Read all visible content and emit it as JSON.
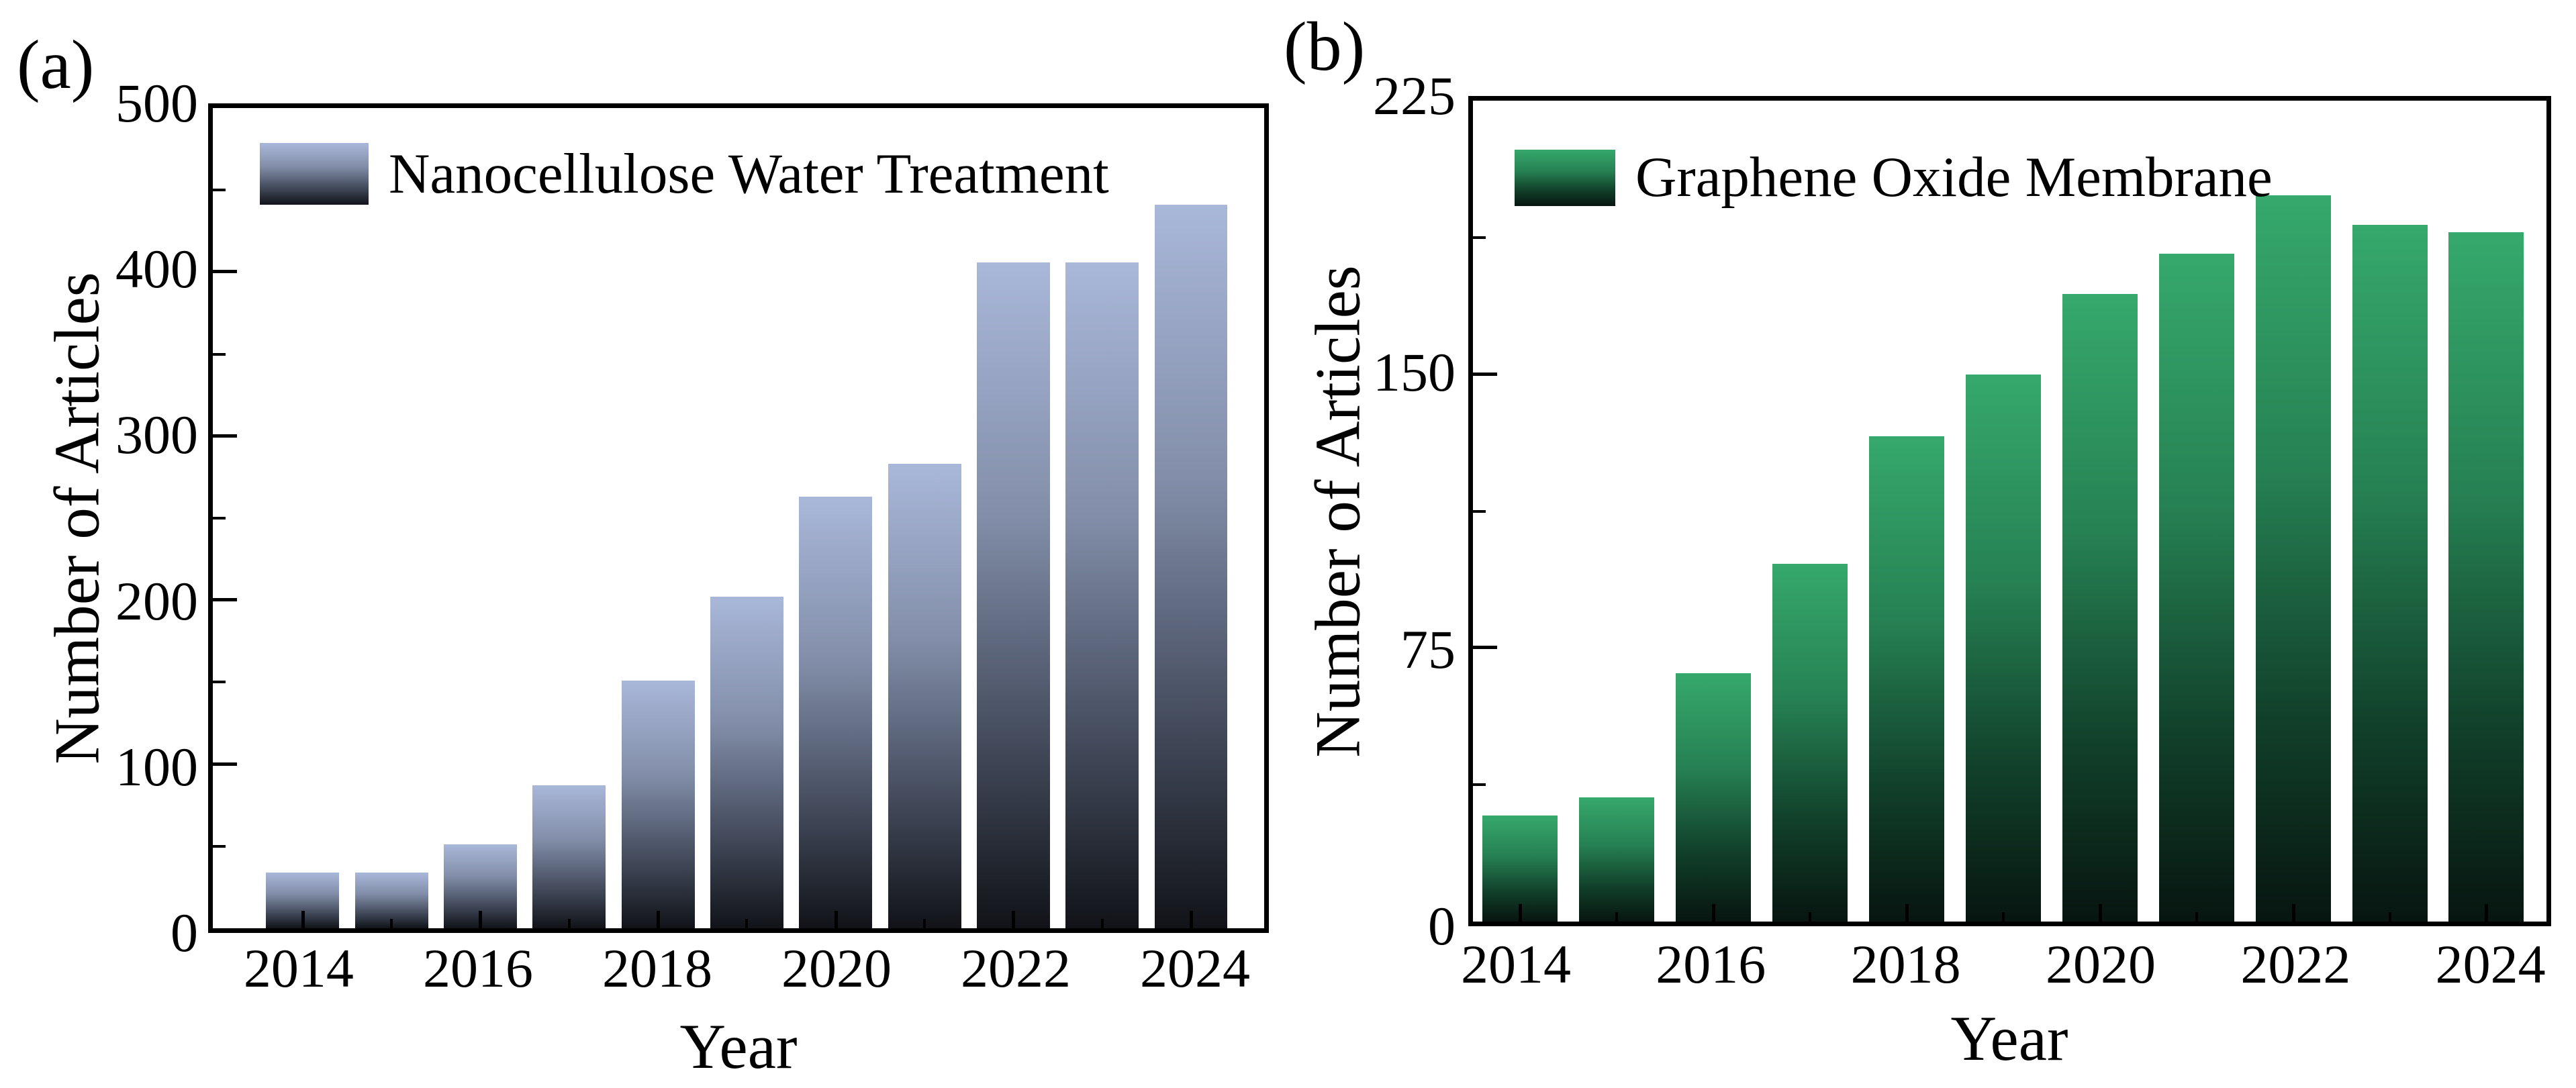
{
  "figure": {
    "background": "#ffffff",
    "panels": [
      "(a)",
      "(b)"
    ]
  },
  "chart_data": [
    {
      "type": "bar",
      "panel_tag": "(a)",
      "title": "",
      "xlabel": "Year",
      "ylabel": "Number of Articles",
      "categories": [
        "2014",
        "2015",
        "2016",
        "2017",
        "2018",
        "2019",
        "2020",
        "2021",
        "2022",
        "2023",
        "2024"
      ],
      "series": [
        {
          "name": "Nanocellulose Water Treatment",
          "values": [
            34,
            34,
            51,
            87,
            151,
            202,
            263,
            283,
            406,
            406,
            441
          ]
        }
      ],
      "ylim": [
        0,
        500
      ],
      "yticks": [
        0,
        100,
        200,
        300,
        400,
        500
      ],
      "yticks_minor": [
        50,
        150,
        250,
        350,
        450
      ],
      "xticks_labeled": [
        "2014",
        "2016",
        "2018",
        "2020",
        "2022",
        "2024"
      ],
      "grid": false,
      "legend_position": "upper-left",
      "bar_gradient": [
        "#a9b7d9",
        "#828ea9",
        "#434b5c",
        "#111318"
      ]
    },
    {
      "type": "bar",
      "panel_tag": "(b)",
      "title": "",
      "xlabel": "Year",
      "ylabel": "Number of Articles",
      "categories": [
        "2014",
        "2015",
        "2016",
        "2017",
        "2018",
        "2019",
        "2020",
        "2021",
        "2022",
        "2023",
        "2024"
      ],
      "series": [
        {
          "name": "Graphene Oxide Membrane",
          "values": [
            29,
            34,
            68,
            98,
            133,
            150,
            172,
            183,
            199,
            191,
            189
          ]
        }
      ],
      "ylim": [
        0,
        225
      ],
      "yticks": [
        0,
        75,
        150,
        225
      ],
      "yticks_minor": [
        37.5,
        112.5,
        187.5
      ],
      "xticks_labeled": [
        "2014",
        "2016",
        "2018",
        "2020",
        "2022",
        "2024"
      ],
      "grid": false,
      "legend_position": "upper-left",
      "bar_gradient": [
        "#36a96c",
        "#268153",
        "#11402a",
        "#071510"
      ]
    }
  ]
}
